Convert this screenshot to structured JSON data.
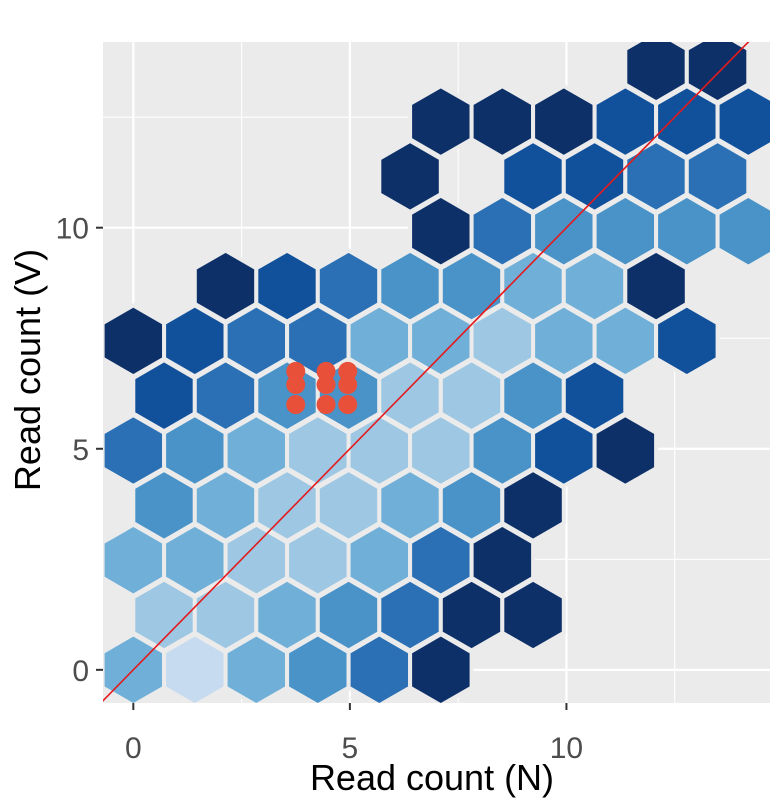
{
  "chart_data": {
    "type": "hexbin",
    "title": "",
    "xlabel": "Read count (N)",
    "ylabel": "Read count (V)",
    "xlim": [
      -0.7,
      14.7
    ],
    "ylim": [
      -0.75,
      14.2
    ],
    "x_ticks": [
      0,
      5,
      10
    ],
    "y_ticks": [
      0,
      5,
      10
    ],
    "x_tick_labels": [
      "0",
      "5",
      "10"
    ],
    "y_tick_labels": [
      "0",
      "5",
      "10"
    ],
    "grid": true,
    "colors": {
      "panel_background": "#ebebeb",
      "grid_line": "#ffffff",
      "hex_stroke": "#ebebeb",
      "reference_line": "#e41a1c",
      "highlight_points": "#e8503a"
    },
    "color_scale": [
      "#0d3068",
      "#11509b",
      "#2b70b5",
      "#4a93c8",
      "#6fafd8",
      "#9dc7e2",
      "#c6dbef"
    ],
    "hex_bins": {
      "x_centers_even_rows": [
        0,
        1.42,
        2.84,
        4.26,
        5.68,
        7.1,
        8.52,
        9.94,
        11.36,
        12.78,
        14.2
      ],
      "x_centers_odd_rows": [
        0.71,
        2.13,
        3.55,
        4.97,
        6.39,
        7.81,
        9.23,
        10.65,
        12.07,
        13.49
      ],
      "y_center_first_row": 0,
      "y_row_spacing": 1.24,
      "rows": [
        {
          "row": 0,
          "bins": [
            {
              "i": 0,
              "c": 4
            },
            {
              "i": 1,
              "c": 6
            },
            {
              "i": 2,
              "c": 4
            },
            {
              "i": 3,
              "c": 3
            },
            {
              "i": 4,
              "c": 2
            },
            {
              "i": 5,
              "c": 0
            }
          ]
        },
        {
          "row": 1,
          "bins": [
            {
              "i": 0,
              "c": 5
            },
            {
              "i": 1,
              "c": 5
            },
            {
              "i": 2,
              "c": 4
            },
            {
              "i": 3,
              "c": 3
            },
            {
              "i": 4,
              "c": 2
            },
            {
              "i": 5,
              "c": 0
            },
            {
              "i": 6,
              "c": 0
            }
          ]
        },
        {
          "row": 2,
          "bins": [
            {
              "i": 0,
              "c": 4
            },
            {
              "i": 1,
              "c": 4
            },
            {
              "i": 2,
              "c": 5
            },
            {
              "i": 3,
              "c": 5
            },
            {
              "i": 4,
              "c": 4
            },
            {
              "i": 5,
              "c": 2
            },
            {
              "i": 6,
              "c": 0
            }
          ]
        },
        {
          "row": 3,
          "bins": [
            {
              "i": 0,
              "c": 3
            },
            {
              "i": 1,
              "c": 4
            },
            {
              "i": 2,
              "c": 5
            },
            {
              "i": 3,
              "c": 5
            },
            {
              "i": 4,
              "c": 4
            },
            {
              "i": 5,
              "c": 3
            },
            {
              "i": 6,
              "c": 0
            }
          ]
        },
        {
          "row": 4,
          "bins": [
            {
              "i": 0,
              "c": 2
            },
            {
              "i": 1,
              "c": 3
            },
            {
              "i": 2,
              "c": 4
            },
            {
              "i": 3,
              "c": 5
            },
            {
              "i": 4,
              "c": 5
            },
            {
              "i": 5,
              "c": 5
            },
            {
              "i": 6,
              "c": 3
            },
            {
              "i": 7,
              "c": 1
            },
            {
              "i": 8,
              "c": 0
            }
          ]
        },
        {
          "row": 5,
          "bins": [
            {
              "i": 0,
              "c": 1
            },
            {
              "i": 1,
              "c": 2
            },
            {
              "i": 2,
              "c": 3
            },
            {
              "i": 3,
              "c": 3
            },
            {
              "i": 4,
              "c": 5
            },
            {
              "i": 5,
              "c": 5
            },
            {
              "i": 6,
              "c": 3
            },
            {
              "i": 7,
              "c": 1
            }
          ]
        },
        {
          "row": 6,
          "bins": [
            {
              "i": 0,
              "c": 0
            },
            {
              "i": 1,
              "c": 1
            },
            {
              "i": 2,
              "c": 2
            },
            {
              "i": 3,
              "c": 2
            },
            {
              "i": 4,
              "c": 4
            },
            {
              "i": 5,
              "c": 4
            },
            {
              "i": 6,
              "c": 5
            },
            {
              "i": 7,
              "c": 4
            },
            {
              "i": 8,
              "c": 4
            },
            {
              "i": 9,
              "c": 1
            }
          ]
        },
        {
          "row": 7,
          "bins": [
            {
              "i": 1,
              "c": 0
            },
            {
              "i": 2,
              "c": 1
            },
            {
              "i": 3,
              "c": 2
            },
            {
              "i": 4,
              "c": 3
            },
            {
              "i": 5,
              "c": 3
            },
            {
              "i": 6,
              "c": 4
            },
            {
              "i": 7,
              "c": 4
            },
            {
              "i": 8,
              "c": 0
            }
          ]
        },
        {
          "row": 8,
          "bins": [
            {
              "i": 5,
              "c": 0
            },
            {
              "i": 6,
              "c": 2
            },
            {
              "i": 7,
              "c": 3
            },
            {
              "i": 8,
              "c": 3
            },
            {
              "i": 9,
              "c": 3
            },
            {
              "i": 10,
              "c": 3
            },
            {
              "i": 11,
              "c": 3
            },
            {
              "i": 12,
              "c": 0
            }
          ]
        },
        {
          "row": 9,
          "bins": [
            {
              "i": 4,
              "c": 0
            },
            {
              "i": 6,
              "c": 1
            },
            {
              "i": 7,
              "c": 1
            },
            {
              "i": 8,
              "c": 2
            },
            {
              "i": 9,
              "c": 2
            },
            {
              "i": 10,
              "c": 1
            }
          ]
        },
        {
          "row": 10,
          "bins": [
            {
              "i": 5,
              "c": 0
            },
            {
              "i": 6,
              "c": 0
            },
            {
              "i": 7,
              "c": 0
            },
            {
              "i": 8,
              "c": 1
            },
            {
              "i": 9,
              "c": 1
            },
            {
              "i": 10,
              "c": 1
            },
            {
              "i": 11,
              "c": 1
            },
            {
              "i": 12,
              "c": 2
            }
          ]
        },
        {
          "row": 11,
          "bins": [
            {
              "i": 8,
              "c": 0
            },
            {
              "i": 9,
              "c": 0
            }
          ]
        }
      ]
    },
    "reference_line": {
      "slope": 1,
      "intercept": 0
    },
    "highlight_points": [
      {
        "x": 3.75,
        "y": 6.0
      },
      {
        "x": 3.75,
        "y": 6.45
      },
      {
        "x": 3.75,
        "y": 6.75
      },
      {
        "x": 4.45,
        "y": 6.0
      },
      {
        "x": 4.45,
        "y": 6.45
      },
      {
        "x": 4.45,
        "y": 6.75
      },
      {
        "x": 4.95,
        "y": 6.0
      },
      {
        "x": 4.95,
        "y": 6.45
      },
      {
        "x": 4.95,
        "y": 6.75
      }
    ]
  }
}
